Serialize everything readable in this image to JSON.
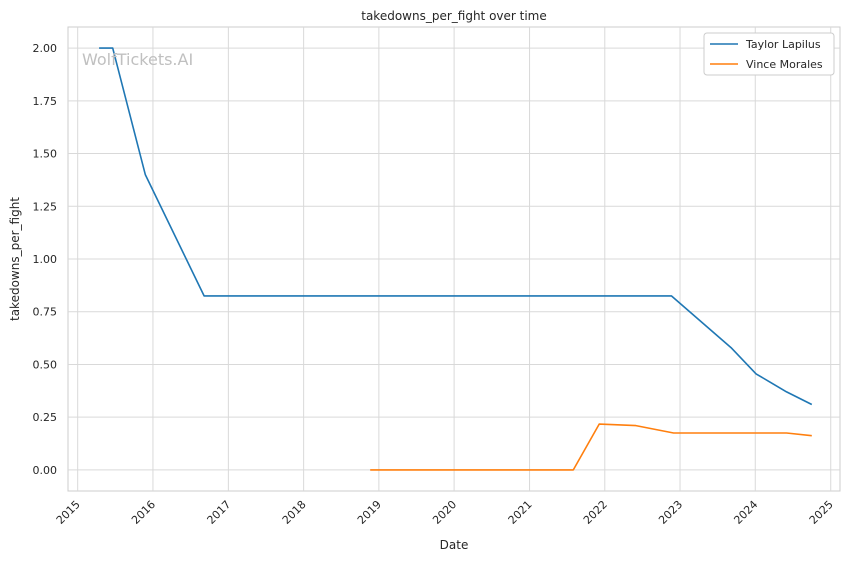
{
  "watermark": "WolfTickets.AI",
  "chart_data": {
    "type": "line",
    "title": "takedowns_per_fight over time",
    "xlabel": "Date",
    "ylabel": "takedowns_per_fight",
    "x_ticks": [
      "2015",
      "2016",
      "2017",
      "2018",
      "2019",
      "2020",
      "2021",
      "2022",
      "2023",
      "2024",
      "2025"
    ],
    "y_ticks": [
      "0.00",
      "0.25",
      "0.50",
      "0.75",
      "1.00",
      "1.25",
      "1.50",
      "1.75",
      "2.00"
    ],
    "xlim": [
      "2014-11-15",
      "2025-02-15"
    ],
    "ylim": [
      -0.1,
      2.1
    ],
    "grid": true,
    "legend_position": "top-right",
    "colors": {
      "Taylor Lapilus": "#1f77b4",
      "Vince Morales": "#ff7f0e"
    },
    "series": [
      {
        "name": "Taylor Lapilus",
        "points": [
          [
            "2015-04-15",
            2.0
          ],
          [
            "2015-06-20",
            2.0
          ],
          [
            "2015-11-25",
            1.4
          ],
          [
            "2016-09-05",
            0.825
          ],
          [
            "2022-11-20",
            0.825
          ],
          [
            "2023-09-05",
            0.58
          ],
          [
            "2024-01-05",
            0.455
          ],
          [
            "2024-06-01",
            0.37
          ],
          [
            "2024-10-01",
            0.31
          ]
        ]
      },
      {
        "name": "Vince Morales",
        "points": [
          [
            "2018-11-20",
            0.0
          ],
          [
            "2021-08-01",
            0.0
          ],
          [
            "2021-12-05",
            0.217
          ],
          [
            "2022-06-01",
            0.21
          ],
          [
            "2022-12-01",
            0.175
          ],
          [
            "2024-06-01",
            0.175
          ],
          [
            "2024-10-01",
            0.162
          ]
        ]
      }
    ]
  }
}
